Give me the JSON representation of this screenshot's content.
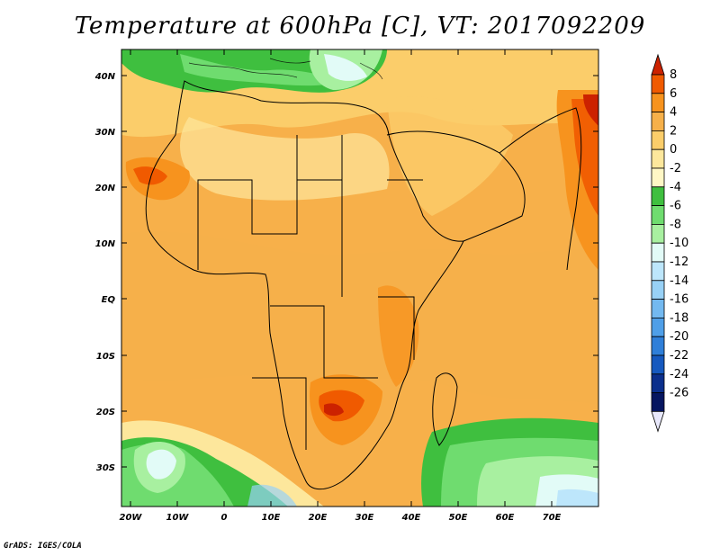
{
  "title": "Temperature at 600hPa [C], VT: 2017092209",
  "footer": "GrADS: IGES/COLA",
  "map": {
    "variable": "Temperature",
    "level": "600hPa",
    "units": "C",
    "valid_time": "2017092209",
    "lon_labels": [
      "20W",
      "10W",
      "0",
      "10E",
      "20E",
      "30E",
      "40E",
      "50E",
      "60E",
      "70E"
    ],
    "lat_labels": [
      "40N",
      "30N",
      "20N",
      "10N",
      "EQ",
      "10S",
      "20S",
      "30S"
    ]
  },
  "colorbar": {
    "labels": [
      "8",
      "6",
      "4",
      "2",
      "0",
      "-2",
      "-4",
      "-6",
      "-8",
      "-10",
      "-12",
      "-14",
      "-16",
      "-18",
      "-20",
      "-22",
      "-24",
      "-26"
    ],
    "colors": [
      "#cc2200",
      "#f05a00",
      "#f7931e",
      "#f6b04a",
      "#fbcd6a",
      "#fde79c",
      "#fff7c5",
      "#3fbf3f",
      "#6fdc6f",
      "#a8f0a0",
      "#e2fbf7",
      "#bde6fb",
      "#98d1f6",
      "#73b9f0",
      "#4f9fe8",
      "#2f7fd9",
      "#1659bf",
      "#0b2f8c",
      "#061660",
      "#e8e8fb"
    ]
  }
}
